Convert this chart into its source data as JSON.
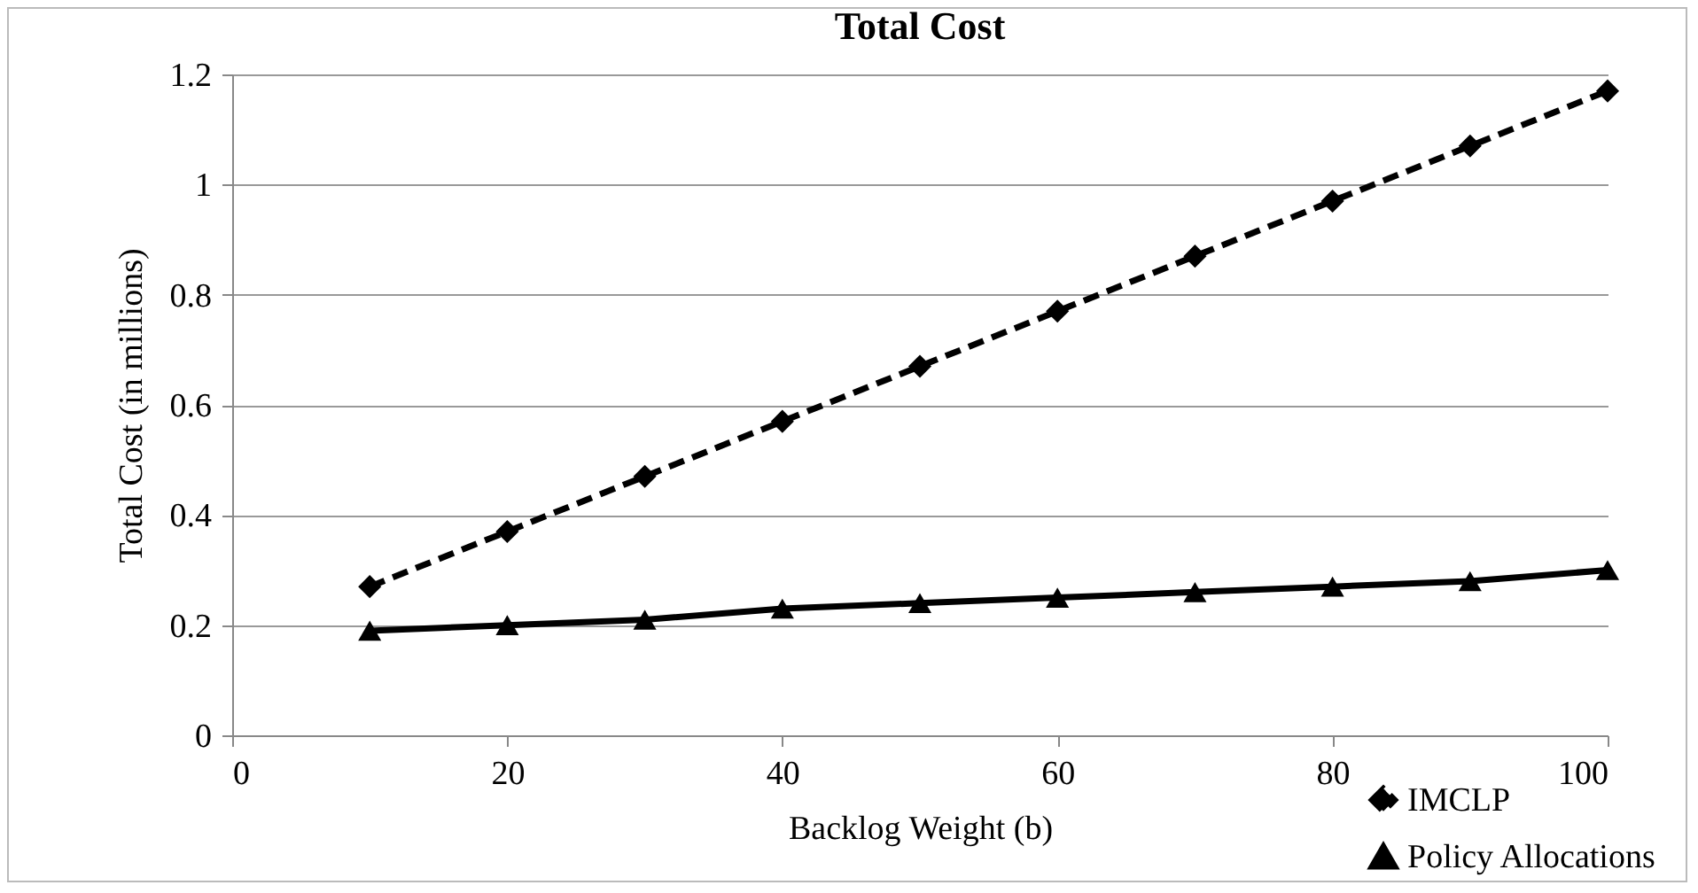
{
  "chart_data": {
    "type": "line",
    "title": "Total Cost",
    "xlabel": "Backlog Weight (b)",
    "ylabel": "Total Cost (in millions)",
    "x": [
      10,
      20,
      30,
      40,
      50,
      60,
      70,
      80,
      90,
      100
    ],
    "series": [
      {
        "name": "IMCLP",
        "color": "#000000",
        "marker": "diamond",
        "line_style": "dashed",
        "values": [
          0.27,
          0.37,
          0.47,
          0.57,
          0.67,
          0.77,
          0.87,
          0.97,
          1.07,
          1.17
        ]
      },
      {
        "name": "Policy Allocations",
        "color": "#000000",
        "marker": "triangle",
        "line_style": "solid",
        "values": [
          0.19,
          0.2,
          0.21,
          0.23,
          0.24,
          0.25,
          0.26,
          0.27,
          0.28,
          0.3
        ]
      }
    ],
    "xlim": [
      0,
      100
    ],
    "xticks": [
      0,
      20,
      40,
      60,
      80,
      100
    ],
    "ylim": [
      0,
      1.2
    ],
    "yticks": [
      0,
      0.2,
      0.4,
      0.6,
      0.8,
      1,
      1.2
    ],
    "grid": "y",
    "legend": "bottom right"
  }
}
